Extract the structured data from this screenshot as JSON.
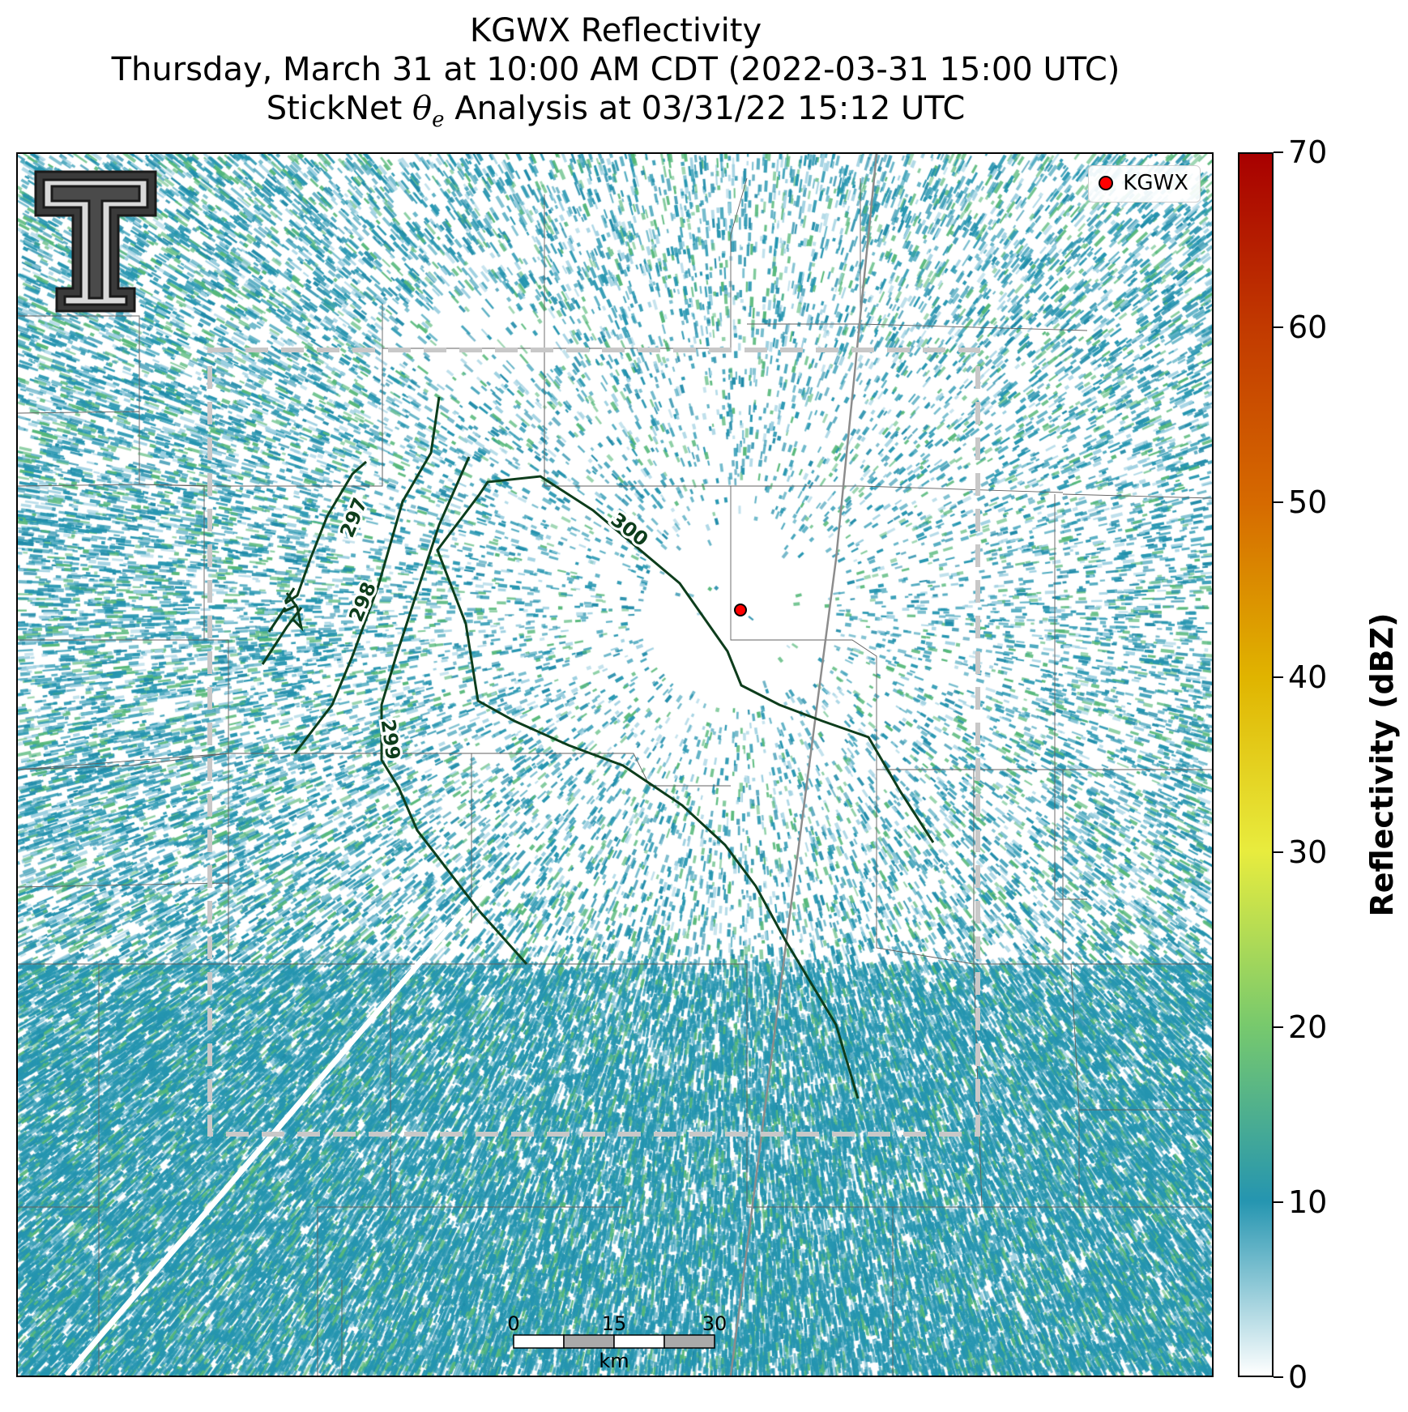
{
  "title": {
    "line1": "KGWX Reflectivity",
    "line2": "Thursday, March 31 at 10:00 AM CDT (2022-03-31 15:00 UTC)",
    "line3_pre": "StickNet ",
    "line3_theta": "θ",
    "line3_sub": "e",
    "line3_post": " Analysis at 03/31/22 15:12 UTC"
  },
  "legend": {
    "label": "KGWX",
    "marker_color": "#ff0000"
  },
  "scale_bar": {
    "ticks": [
      "0",
      "15",
      "30"
    ],
    "unit": "km"
  },
  "contours": [
    {
      "label": "297"
    },
    {
      "label": "298"
    },
    {
      "label": "299"
    },
    {
      "label": "300"
    }
  ],
  "colorbar": {
    "title": "Reflectivity (dBZ)",
    "min": 0,
    "max": 70,
    "ticks": [
      "0",
      "10",
      "20",
      "30",
      "40",
      "50",
      "60",
      "70"
    ],
    "colors": [
      "#ffffff",
      "#2595b0",
      "#77c96d",
      "#e8ec3e",
      "#e0b400",
      "#d66a00",
      "#c23a00",
      "#a80000"
    ]
  },
  "colors": {
    "contour": "#0d3d1c",
    "analysis_box": "#c8c8c8",
    "echo_main": "#2595b0",
    "echo_light": "#9ccfe0",
    "echo_green": "#56b87a"
  }
}
